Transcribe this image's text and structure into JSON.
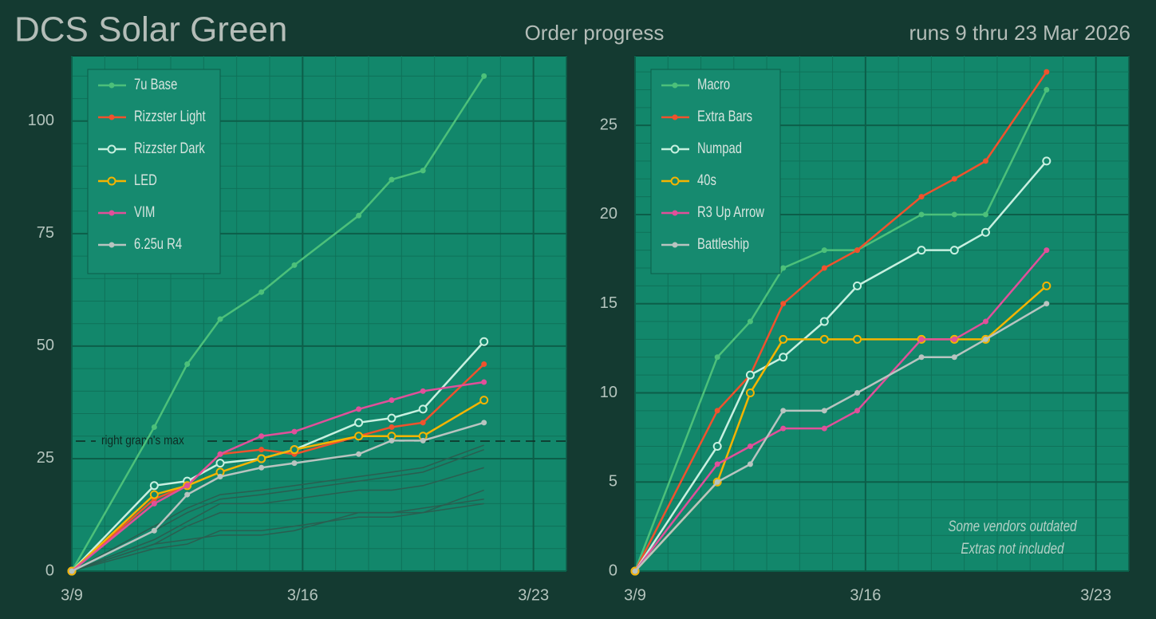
{
  "header": {
    "title": "DCS Solar Green",
    "subtitle": "Order progress",
    "date_range": "runs 9 thru 23 Mar 2026"
  },
  "chart_data": [
    {
      "type": "line",
      "x": [
        0,
        2.5,
        3.5,
        4.5,
        5.75,
        6.75,
        8.7,
        9.7,
        10.65,
        12.5
      ],
      "xlim": [
        0,
        15
      ],
      "xticks": [
        {
          "value": 0,
          "label": "3/9"
        },
        {
          "value": 7,
          "label": "3/16"
        },
        {
          "value": 14,
          "label": "3/23"
        }
      ],
      "ylim": [
        0,
        114.5
      ],
      "yticks": [
        0,
        25,
        50,
        75,
        100
      ],
      "grid": true,
      "legend": "upper left",
      "hline": {
        "value": 28.9,
        "label": "right graph's max"
      },
      "series": [
        {
          "color": "#2a5e50",
          "values": [
            0,
            5,
            6,
            9,
            9,
            10,
            12,
            12,
            13,
            15
          ]
        },
        {
          "color": "#2a5e50",
          "values": [
            0,
            6,
            7,
            8,
            8,
            9,
            13,
            13,
            14,
            16
          ]
        },
        {
          "color": "#2a5e50",
          "values": [
            0,
            6,
            10,
            13,
            13,
            13,
            13,
            13,
            13,
            18
          ]
        },
        {
          "color": "#2a5e50",
          "values": [
            0,
            7,
            11,
            15,
            15,
            16,
            18,
            18,
            19,
            23
          ]
        },
        {
          "color": "#2a5e50",
          "values": [
            0,
            9,
            13,
            16,
            17,
            18,
            20,
            21,
            22,
            27
          ]
        },
        {
          "color": "#2a5e50",
          "values": [
            0,
            10,
            14,
            17,
            18,
            19,
            21,
            22,
            23,
            28
          ]
        },
        {
          "name": "7u Base",
          "color": "#4cc07a",
          "marker": "dot",
          "values": [
            0,
            32,
            46,
            56,
            62,
            68,
            79,
            87,
            89,
            110
          ]
        },
        {
          "name": "Rizzster Light",
          "color": "#f0522d",
          "marker": "dot",
          "values": [
            0,
            16,
            19,
            26,
            27,
            26,
            30,
            32,
            33,
            46
          ]
        },
        {
          "name": "Rizzster Dark",
          "color": "#c8f0e0",
          "marker": "open",
          "values": [
            0,
            19,
            20,
            24,
            25,
            27,
            33,
            34,
            36,
            51
          ]
        },
        {
          "name": "LED",
          "color": "#f5b400",
          "marker": "open",
          "values": [
            0,
            17,
            19,
            22,
            25,
            27,
            30,
            30,
            30,
            38
          ]
        },
        {
          "name": "VIM",
          "color": "#e0509a",
          "marker": "dot",
          "values": [
            0,
            15,
            19,
            26,
            30,
            31,
            36,
            38,
            40,
            42
          ]
        },
        {
          "name": "6.25u R4",
          "color": "#b8c4c0",
          "marker": "dot",
          "values": [
            0,
            9,
            17,
            21,
            23,
            24,
            26,
            29,
            29,
            33
          ]
        }
      ]
    },
    {
      "type": "line",
      "x": [
        0,
        2.5,
        3.5,
        4.5,
        5.75,
        6.75,
        8.7,
        9.7,
        10.65,
        12.5
      ],
      "xlim": [
        0,
        15
      ],
      "xticks": [
        {
          "value": 0,
          "label": "3/9"
        },
        {
          "value": 7,
          "label": "3/16"
        },
        {
          "value": 14,
          "label": "3/23"
        }
      ],
      "ylim": [
        0,
        28.9
      ],
      "yticks": [
        0,
        5,
        10,
        15,
        20,
        25
      ],
      "grid": true,
      "legend": "upper left",
      "annotations": [
        "Some vendors outdated",
        "Extras not included"
      ],
      "series": [
        {
          "name": "Macro",
          "color": "#4cc07a",
          "marker": "dot",
          "values": [
            0,
            12,
            14,
            17,
            18,
            18,
            20,
            20,
            20,
            27
          ]
        },
        {
          "name": "Extra Bars",
          "color": "#f0522d",
          "marker": "dot",
          "values": [
            0,
            9,
            11,
            15,
            17,
            18,
            21,
            22,
            23,
            28
          ]
        },
        {
          "name": "Numpad",
          "color": "#c8f0e0",
          "marker": "open",
          "values": [
            0,
            7,
            11,
            12,
            14,
            16,
            18,
            18,
            19,
            23
          ]
        },
        {
          "name": "40s",
          "color": "#f5b400",
          "marker": "open",
          "values": [
            0,
            5,
            10,
            13,
            13,
            13,
            13,
            13,
            13,
            16
          ]
        },
        {
          "name": "R3 Up Arrow",
          "color": "#e0509a",
          "marker": "dot",
          "values": [
            0,
            6,
            7,
            8,
            8,
            9,
            13,
            13,
            14,
            18
          ]
        },
        {
          "name": "Battleship",
          "color": "#b8c4c0",
          "marker": "dot",
          "values": [
            0,
            5,
            6,
            9,
            9,
            10,
            12,
            12,
            13,
            15
          ]
        }
      ]
    }
  ]
}
